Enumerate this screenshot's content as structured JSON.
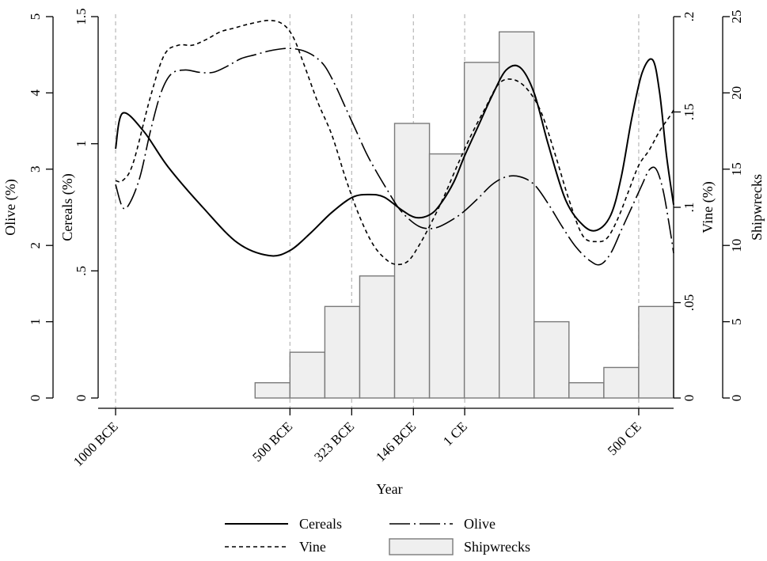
{
  "chart_data": {
    "type": "line",
    "x_axis": {
      "label": "Year",
      "tick_values": [
        -1000,
        -500,
        -323,
        -146,
        1,
        500
      ],
      "tick_labels": [
        "1000 BCE",
        "500 BCE",
        "323 BCE",
        "146 BCE",
        "1 CE",
        "500 CE"
      ],
      "range": [
        -1050,
        600
      ],
      "reference_lines": [
        -1000,
        -500,
        -323,
        -146,
        1,
        500
      ]
    },
    "y_axes": {
      "olive": {
        "label": "Olive (%)",
        "range": [
          0,
          5
        ],
        "tick_values": [
          0,
          1,
          2,
          3,
          4,
          5
        ],
        "tick_labels": [
          "0",
          "1",
          "2",
          "3",
          "4",
          "5"
        ]
      },
      "cereals": {
        "label": "Cereals (%)",
        "range": [
          0,
          1.5
        ],
        "tick_values": [
          0,
          0.5,
          1,
          1.5
        ],
        "tick_labels": [
          "0",
          ".5",
          "1",
          "1.5"
        ]
      },
      "vine": {
        "label": "Vine (%)",
        "range": [
          0,
          0.2
        ],
        "tick_values": [
          0,
          0.05,
          0.1,
          0.15,
          0.2
        ],
        "tick_labels": [
          "0",
          ".05",
          ".1",
          ".15",
          ".2"
        ]
      },
      "shipwrecks": {
        "label": "Shipwrecks",
        "range": [
          0,
          25
        ],
        "tick_values": [
          0,
          5,
          10,
          15,
          20,
          25
        ],
        "tick_labels": [
          "0",
          "5",
          "10",
          "15",
          "20",
          "25"
        ]
      }
    },
    "series": [
      {
        "name": "Cereals",
        "axis": "cereals",
        "style": "solid",
        "x": [
          -1000,
          -980,
          -920,
          -850,
          -750,
          -650,
          -560,
          -500,
          -440,
          -380,
          -320,
          -270,
          -230,
          -180,
          -140,
          -100,
          -70,
          -30,
          0,
          40,
          80,
          120,
          160,
          200,
          240,
          290,
          340,
          380,
          420,
          450,
          480,
          510,
          540,
          560,
          580,
          600
        ],
        "y": [
          0.98,
          1.12,
          1.05,
          0.91,
          0.75,
          0.61,
          0.56,
          0.58,
          0.65,
          0.73,
          0.79,
          0.8,
          0.79,
          0.74,
          0.71,
          0.72,
          0.76,
          0.85,
          0.95,
          1.07,
          1.19,
          1.29,
          1.3,
          1.2,
          1.0,
          0.78,
          0.68,
          0.66,
          0.72,
          0.87,
          1.1,
          1.28,
          1.33,
          1.2,
          0.95,
          0.76
        ]
      },
      {
        "name": "Vine",
        "axis": "vine",
        "style": "short-dash",
        "x": [
          -1000,
          -980,
          -950,
          -900,
          -860,
          -820,
          -780,
          -740,
          -700,
          -660,
          -620,
          -560,
          -520,
          -490,
          -460,
          -420,
          -380,
          -340,
          -300,
          -260,
          -220,
          -190,
          -160,
          -130,
          -100,
          -60,
          -20,
          20,
          60,
          100,
          140,
          180,
          220,
          260,
          300,
          340,
          380,
          410,
          440,
          470,
          500,
          530,
          560,
          590,
          600
        ],
        "y": [
          0.114,
          0.114,
          0.123,
          0.158,
          0.18,
          0.185,
          0.185,
          0.188,
          0.192,
          0.194,
          0.196,
          0.198,
          0.196,
          0.189,
          0.175,
          0.155,
          0.138,
          0.115,
          0.095,
          0.08,
          0.072,
          0.07,
          0.072,
          0.08,
          0.09,
          0.105,
          0.122,
          0.138,
          0.152,
          0.165,
          0.167,
          0.162,
          0.15,
          0.128,
          0.104,
          0.085,
          0.082,
          0.084,
          0.094,
          0.108,
          0.122,
          0.13,
          0.14,
          0.148,
          0.151
        ]
      },
      {
        "name": "Olive",
        "axis": "olive",
        "style": "long-dash",
        "x": [
          -1000,
          -980,
          -960,
          -930,
          -900,
          -870,
          -840,
          -800,
          -760,
          -720,
          -680,
          -640,
          -600,
          -560,
          -520,
          -490,
          -460,
          -430,
          -400,
          -370,
          -340,
          -310,
          -280,
          -250,
          -220,
          -190,
          -160,
          -130,
          -100,
          -70,
          -30,
          0,
          40,
          80,
          120,
          160,
          200,
          240,
          280,
          320,
          360,
          390,
          420,
          450,
          480,
          510,
          530,
          550,
          570,
          590,
          600
        ],
        "y": [
          2.8,
          2.5,
          2.55,
          2.9,
          3.5,
          4.0,
          4.25,
          4.3,
          4.27,
          4.27,
          4.35,
          4.45,
          4.5,
          4.55,
          4.58,
          4.58,
          4.55,
          4.48,
          4.35,
          4.1,
          3.8,
          3.5,
          3.2,
          2.95,
          2.72,
          2.5,
          2.35,
          2.25,
          2.22,
          2.25,
          2.35,
          2.45,
          2.62,
          2.8,
          2.9,
          2.9,
          2.8,
          2.55,
          2.25,
          1.98,
          1.8,
          1.75,
          1.9,
          2.2,
          2.5,
          2.8,
          2.99,
          3.0,
          2.72,
          2.2,
          1.9
        ]
      }
    ],
    "shipwrecks": {
      "name": "Shipwrecks",
      "axis": "shipwrecks",
      "type": "bar",
      "bin_edges": [
        -600,
        -500,
        -400,
        -300,
        -200,
        -100,
        0,
        100,
        200,
        300,
        400,
        500,
        600
      ],
      "values": [
        1,
        3,
        6,
        8,
        18,
        16,
        22,
        24,
        5,
        1,
        2,
        6
      ]
    },
    "legend": {
      "placement": "bottom",
      "entries": [
        {
          "label": "Cereals",
          "style": "solid"
        },
        {
          "label": "Olive",
          "style": "long-dash"
        },
        {
          "label": "Vine",
          "style": "short-dash"
        },
        {
          "label": "Shipwrecks",
          "style": "bar"
        }
      ]
    },
    "grid": false,
    "colors": {
      "lines": "#000000",
      "bar_fill": "#efefef",
      "bar_stroke": "#7a7a7a",
      "ref_line": "#bdbdbd"
    }
  }
}
